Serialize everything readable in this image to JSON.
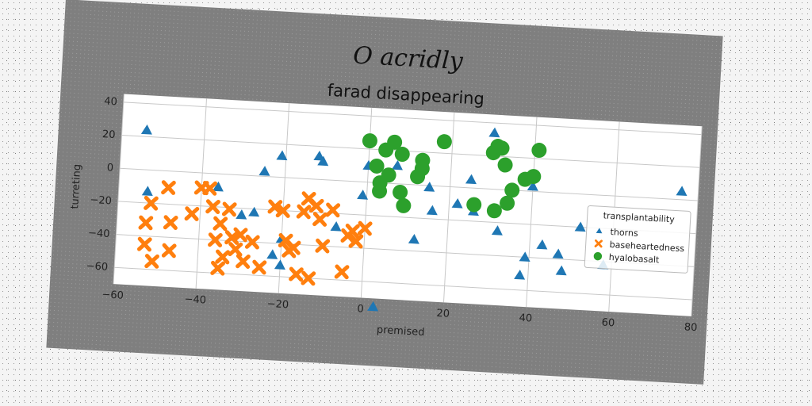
{
  "chart_data": {
    "type": "scatter",
    "suptitle": "O acridly",
    "title": "farad disappearing",
    "xlabel": "premised",
    "ylabel": "turreting",
    "xlim": [
      -60,
      80
    ],
    "ylim": [
      -70,
      45
    ],
    "xticks": [
      -60,
      -40,
      -20,
      0,
      20,
      40,
      60,
      80
    ],
    "yticks": [
      -60,
      -40,
      -20,
      0,
      20,
      40
    ],
    "grid": true,
    "legend": {
      "title": "transplantability",
      "placement": "center-right"
    },
    "series": [
      {
        "name": "thorns",
        "marker": "triangle",
        "color": "#1f77b4",
        "points": [
          [
            -54,
            24
          ],
          [
            -53,
            -13
          ],
          [
            -36,
            -8
          ],
          [
            -30,
            -24
          ],
          [
            -27,
            -22
          ],
          [
            -25,
            3
          ],
          [
            -21,
            13
          ],
          [
            -20,
            -37
          ],
          [
            -22,
            -47
          ],
          [
            -20,
            -53
          ],
          [
            -12,
            14
          ],
          [
            -11,
            11
          ],
          [
            -7,
            -28
          ],
          [
            -1,
            -8
          ],
          [
            0,
            10
          ],
          [
            3,
            -75
          ],
          [
            7,
            11
          ],
          [
            12,
            -33
          ],
          [
            15,
            -1
          ],
          [
            16,
            -15
          ],
          [
            22,
            -10
          ],
          [
            25,
            5
          ],
          [
            26,
            -14
          ],
          [
            30,
            34
          ],
          [
            32,
            -25
          ],
          [
            38,
            -51
          ],
          [
            39,
            -40
          ],
          [
            40,
            3
          ],
          [
            43,
            -32
          ],
          [
            47,
            -37
          ],
          [
            48,
            -47
          ],
          [
            52,
            -20
          ],
          [
            58,
            -42
          ],
          [
            76,
            5
          ]
        ]
      },
      {
        "name": "baseheartedness",
        "marker": "x",
        "color": "#ff7f0e",
        "points": [
          [
            -53,
            -32
          ],
          [
            -53,
            -45
          ],
          [
            -52,
            -20
          ],
          [
            -51,
            -55
          ],
          [
            -48,
            -10
          ],
          [
            -47,
            -31
          ],
          [
            -47,
            -48
          ],
          [
            -42,
            -25
          ],
          [
            -40,
            -9
          ],
          [
            -38,
            -9
          ],
          [
            -37,
            -20
          ],
          [
            -36,
            -40
          ],
          [
            -35,
            -30
          ],
          [
            -35,
            -57
          ],
          [
            -34,
            -50
          ],
          [
            -33,
            -21
          ],
          [
            -32,
            -38
          ],
          [
            -31,
            -45
          ],
          [
            -30,
            -36
          ],
          [
            -29,
            -52
          ],
          [
            -27,
            -40
          ],
          [
            -25,
            -55
          ],
          [
            -22,
            -18
          ],
          [
            -20,
            -20
          ],
          [
            -19,
            -38
          ],
          [
            -18,
            -44
          ],
          [
            -17,
            -42
          ],
          [
            -16,
            -58
          ],
          [
            -15,
            -20
          ],
          [
            -14,
            -12
          ],
          [
            -13,
            -60
          ],
          [
            -12,
            -16
          ],
          [
            -11,
            -24
          ],
          [
            -10,
            -40
          ],
          [
            -8,
            -18
          ],
          [
            -5,
            -55
          ],
          [
            -4,
            -33
          ],
          [
            -3,
            -30
          ],
          [
            -2,
            -36
          ],
          [
            0,
            -28
          ]
        ]
      },
      {
        "name": "hyalobasalt",
        "marker": "circle",
        "color": "#2ca02c",
        "points": [
          [
            0,
            25
          ],
          [
            2,
            10
          ],
          [
            3,
            0
          ],
          [
            3,
            -5
          ],
          [
            4,
            20
          ],
          [
            5,
            5
          ],
          [
            6,
            25
          ],
          [
            8,
            18
          ],
          [
            8,
            -5
          ],
          [
            9,
            -13
          ],
          [
            12,
            5
          ],
          [
            13,
            15
          ],
          [
            13,
            10
          ],
          [
            18,
            27
          ],
          [
            26,
            -10
          ],
          [
            30,
            22
          ],
          [
            31,
            -13
          ],
          [
            31,
            26
          ],
          [
            32,
            25
          ],
          [
            33,
            15
          ],
          [
            34,
            -8
          ],
          [
            35,
            0
          ],
          [
            38,
            7
          ],
          [
            40,
            9
          ],
          [
            41,
            25
          ]
        ]
      }
    ]
  }
}
